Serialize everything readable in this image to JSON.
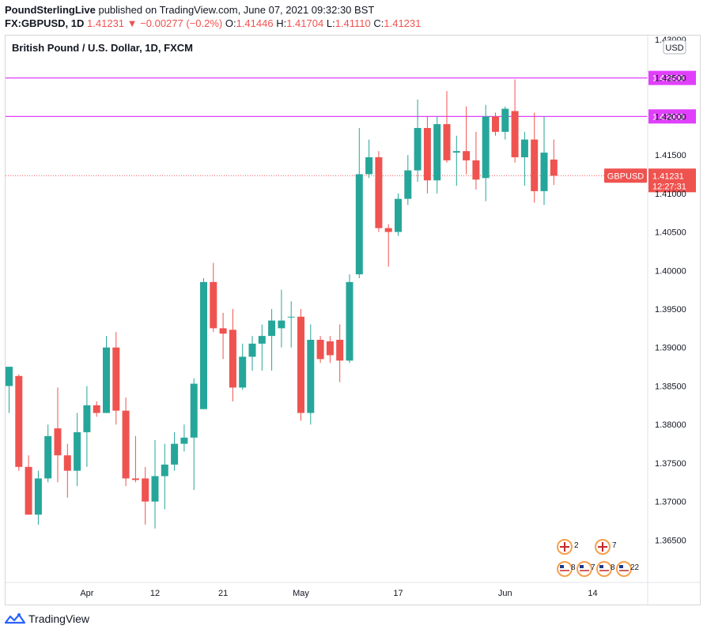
{
  "header": {
    "publisher": "PoundSterlingLive",
    "published_text": "published on TradingView.com, June 07, 2021 09:32:30 BST",
    "symbol": "FX:GBPUSD, 1D",
    "last": "1.41231",
    "change_arrow": "▼",
    "change": "−0.00277 (−0.2%)",
    "o_label": "O:",
    "o_value": "1.41446",
    "h_label": "H:",
    "h_value": "1.41704",
    "l_label": "L:",
    "l_value": "1.41110",
    "c_label": "C:",
    "c_value": "1.41231"
  },
  "footer": {
    "brand": "TradingView",
    "logo_icon": "tradingview-logo-icon"
  },
  "colors": {
    "up": "#26a69a",
    "down": "#ef5350",
    "hline": "#e040fb",
    "grid": "#f0f3fa"
  },
  "chart_data": {
    "type": "candlestick",
    "title": "British Pound / U.S. Dollar, 1D, FXCM",
    "currency": "USD",
    "ylim": [
      1.3595,
      1.4305
    ],
    "grid": false,
    "y_ticks": [
      "1.36500",
      "1.37000",
      "1.37500",
      "1.38000",
      "1.38500",
      "1.39000",
      "1.39500",
      "1.40000",
      "1.40500",
      "1.41000",
      "1.41500",
      "1.42000",
      "1.42500",
      "1.43000"
    ],
    "x_ticks": [
      {
        "label": "Apr",
        "index": 8
      },
      {
        "label": "12",
        "index": 15
      },
      {
        "label": "21",
        "index": 22
      },
      {
        "label": "May",
        "index": 30
      },
      {
        "label": "17",
        "index": 40
      },
      {
        "label": "Jun",
        "index": 51
      },
      {
        "label": "14",
        "index": 60
      }
    ],
    "candles": [
      {
        "o": 1.385,
        "h": 1.3875,
        "l": 1.3815,
        "c": 1.3875
      },
      {
        "o": 1.3863,
        "h": 1.3865,
        "l": 1.374,
        "c": 1.3745
      },
      {
        "o": 1.3745,
        "h": 1.376,
        "l": 1.3685,
        "c": 1.3683
      },
      {
        "o": 1.3683,
        "h": 1.374,
        "l": 1.367,
        "c": 1.373
      },
      {
        "o": 1.373,
        "h": 1.38,
        "l": 1.3725,
        "c": 1.3785
      },
      {
        "o": 1.3795,
        "h": 1.3848,
        "l": 1.3725,
        "c": 1.376
      },
      {
        "o": 1.376,
        "h": 1.3775,
        "l": 1.3705,
        "c": 1.374
      },
      {
        "o": 1.374,
        "h": 1.3815,
        "l": 1.372,
        "c": 1.379
      },
      {
        "o": 1.379,
        "h": 1.385,
        "l": 1.3745,
        "c": 1.3825
      },
      {
        "o": 1.3825,
        "h": 1.383,
        "l": 1.381,
        "c": 1.3815
      },
      {
        "o": 1.3815,
        "h": 1.3915,
        "l": 1.3815,
        "c": 1.39
      },
      {
        "o": 1.39,
        "h": 1.392,
        "l": 1.38,
        "c": 1.3818
      },
      {
        "o": 1.3818,
        "h": 1.3835,
        "l": 1.372,
        "c": 1.373
      },
      {
        "o": 1.373,
        "h": 1.3785,
        "l": 1.3725,
        "c": 1.3728
      },
      {
        "o": 1.373,
        "h": 1.3745,
        "l": 1.367,
        "c": 1.37
      },
      {
        "o": 1.37,
        "h": 1.378,
        "l": 1.3665,
        "c": 1.3733
      },
      {
        "o": 1.3733,
        "h": 1.3775,
        "l": 1.369,
        "c": 1.3748
      },
      {
        "o": 1.3748,
        "h": 1.379,
        "l": 1.374,
        "c": 1.3775
      },
      {
        "o": 1.3775,
        "h": 1.38,
        "l": 1.3765,
        "c": 1.3783
      },
      {
        "o": 1.3783,
        "h": 1.386,
        "l": 1.3715,
        "c": 1.3853
      },
      {
        "o": 1.382,
        "h": 1.399,
        "l": 1.382,
        "c": 1.3985
      },
      {
        "o": 1.3985,
        "h": 1.401,
        "l": 1.392,
        "c": 1.3925
      },
      {
        "o": 1.3925,
        "h": 1.3945,
        "l": 1.3885,
        "c": 1.3918
      },
      {
        "o": 1.3923,
        "h": 1.395,
        "l": 1.383,
        "c": 1.3848
      },
      {
        "o": 1.3848,
        "h": 1.3905,
        "l": 1.3845,
        "c": 1.3888
      },
      {
        "o": 1.3888,
        "h": 1.3915,
        "l": 1.387,
        "c": 1.3905
      },
      {
        "o": 1.3905,
        "h": 1.393,
        "l": 1.387,
        "c": 1.3915
      },
      {
        "o": 1.3915,
        "h": 1.395,
        "l": 1.387,
        "c": 1.3935
      },
      {
        "o": 1.3925,
        "h": 1.3975,
        "l": 1.39,
        "c": 1.3935
      },
      {
        "o": 1.394,
        "h": 1.396,
        "l": 1.39,
        "c": 1.394
      },
      {
        "o": 1.394,
        "h": 1.395,
        "l": 1.3805,
        "c": 1.3815
      },
      {
        "o": 1.3815,
        "h": 1.393,
        "l": 1.38,
        "c": 1.391
      },
      {
        "o": 1.391,
        "h": 1.3915,
        "l": 1.388,
        "c": 1.3885
      },
      {
        "o": 1.3908,
        "h": 1.3915,
        "l": 1.388,
        "c": 1.389
      },
      {
        "o": 1.391,
        "h": 1.393,
        "l": 1.3855,
        "c": 1.3883
      },
      {
        "o": 1.3883,
        "h": 1.3995,
        "l": 1.388,
        "c": 1.3985
      },
      {
        "o": 1.3995,
        "h": 1.4185,
        "l": 1.399,
        "c": 1.4125
      },
      {
        "o": 1.4125,
        "h": 1.417,
        "l": 1.412,
        "c": 1.4147
      },
      {
        "o": 1.4147,
        "h": 1.4155,
        "l": 1.405,
        "c": 1.4055
      },
      {
        "o": 1.4055,
        "h": 1.406,
        "l": 1.4005,
        "c": 1.405
      },
      {
        "o": 1.405,
        "h": 1.41,
        "l": 1.4045,
        "c": 1.4093
      },
      {
        "o": 1.4093,
        "h": 1.415,
        "l": 1.4085,
        "c": 1.413
      },
      {
        "o": 1.413,
        "h": 1.4222,
        "l": 1.4115,
        "c": 1.4185
      },
      {
        "o": 1.4185,
        "h": 1.42,
        "l": 1.41,
        "c": 1.4117
      },
      {
        "o": 1.4117,
        "h": 1.42,
        "l": 1.41,
        "c": 1.419
      },
      {
        "o": 1.419,
        "h": 1.4233,
        "l": 1.414,
        "c": 1.4143
      },
      {
        "o": 1.4153,
        "h": 1.4175,
        "l": 1.411,
        "c": 1.4155
      },
      {
        "o": 1.4155,
        "h": 1.4213,
        "l": 1.4125,
        "c": 1.4143
      },
      {
        "o": 1.4143,
        "h": 1.418,
        "l": 1.4105,
        "c": 1.4118
      },
      {
        "o": 1.412,
        "h": 1.4215,
        "l": 1.409,
        "c": 1.42
      },
      {
        "o": 1.42,
        "h": 1.4205,
        "l": 1.4175,
        "c": 1.418
      },
      {
        "o": 1.418,
        "h": 1.4213,
        "l": 1.417,
        "c": 1.421
      },
      {
        "o": 1.4207,
        "h": 1.4248,
        "l": 1.414,
        "c": 1.4147
      },
      {
        "o": 1.4147,
        "h": 1.418,
        "l": 1.411,
        "c": 1.417
      },
      {
        "o": 1.417,
        "h": 1.4205,
        "l": 1.4088,
        "c": 1.4103
      },
      {
        "o": 1.4103,
        "h": 1.42,
        "l": 1.4085,
        "c": 1.4153
      },
      {
        "o": 1.4144,
        "h": 1.417,
        "l": 1.4111,
        "c": 1.4123
      }
    ],
    "horizontal_lines": [
      {
        "label": "1.42500",
        "value": 1.425
      },
      {
        "label": "1.42000",
        "value": 1.42
      }
    ],
    "last_price": {
      "symbol": "GBPUSD",
      "value": 1.41231,
      "label": "1.41231",
      "countdown": "12:27:31"
    },
    "event_badges": {
      "top": [
        "2",
        "7"
      ],
      "bottom": [
        "8",
        "7",
        "8",
        "22"
      ]
    }
  }
}
